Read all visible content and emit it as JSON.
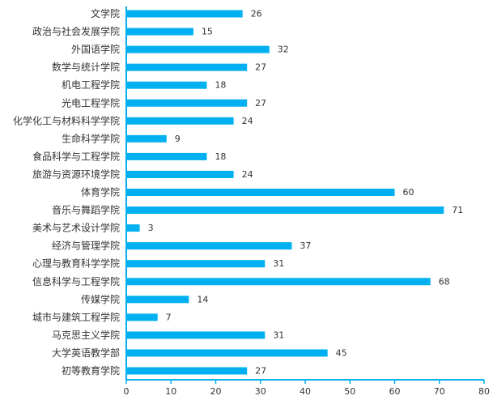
{
  "chart_data": {
    "type": "bar",
    "orientation": "horizontal",
    "categories": [
      "文学院",
      "政治与社会发展学院",
      "外国语学院",
      "数学与统计学院",
      "机电工程学院",
      "光电工程学院",
      "化学化工与材料科学学院",
      "生命科学学院",
      "食品科学与工程学院",
      "旅游与资源环境学院",
      "体育学院",
      "音乐与舞蹈学院",
      "美术与艺术设计学院",
      "经济与管理学院",
      "心理与教育科学学院",
      "信息科学与工程学院",
      "传媒学院",
      "城市与建筑工程学院",
      "马克思主义学院",
      "大学英语教学部",
      "初等教育学院"
    ],
    "values": [
      26,
      15,
      32,
      27,
      18,
      27,
      24,
      9,
      18,
      24,
      60,
      71,
      3,
      37,
      31,
      68,
      14,
      7,
      31,
      45,
      27
    ],
    "xlim": [
      0,
      80
    ],
    "xticks": [
      0,
      10,
      20,
      30,
      40,
      50,
      60,
      70,
      80
    ],
    "bar_color": "#00B0F0",
    "axis_color": "#00B0F0",
    "grid": false,
    "data_labels": true
  }
}
